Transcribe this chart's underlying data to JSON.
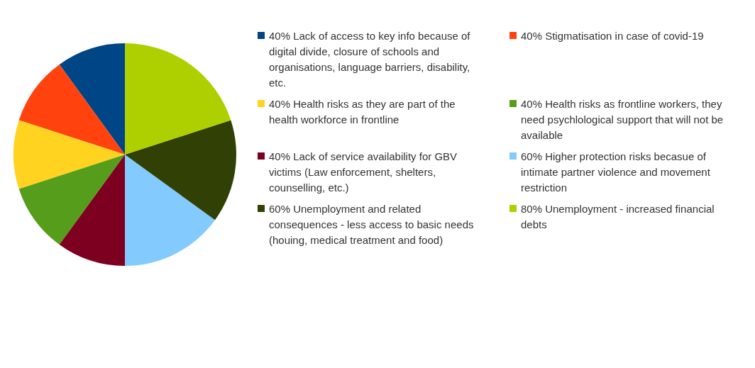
{
  "chart_data": {
    "type": "pie",
    "categories": [
      "Lack of access to key info because of digital divide, closure of schools and organisations, language barriers, disability, etc.",
      "Stigmatisation in case of covid-19",
      "Health risks as they are part of the health workforce in frontline",
      "Health risks as frontline workers, they need psychlological support that will not be available",
      "Lack of service availability for GBV victims (Law enforcement, shelters, counselling, etc.)",
      "Higher protection risks becasue of intimate partner violence and movement restriction",
      "Unemployment and related consequences - less access to basic needs (houing, medical treatment and food)",
      "Unemployment - increased financial debts"
    ],
    "values": [
      40,
      40,
      40,
      40,
      40,
      60,
      60,
      80
    ],
    "value_labels": [
      "40%",
      "40%",
      "40%",
      "40%",
      "40%",
      "60%",
      "60%",
      "80%"
    ],
    "colors": [
      "#004586",
      "#ff420e",
      "#ffd320",
      "#579d1c",
      "#7e0021",
      "#83caff",
      "#314004",
      "#aecf00"
    ],
    "legend": "right"
  }
}
